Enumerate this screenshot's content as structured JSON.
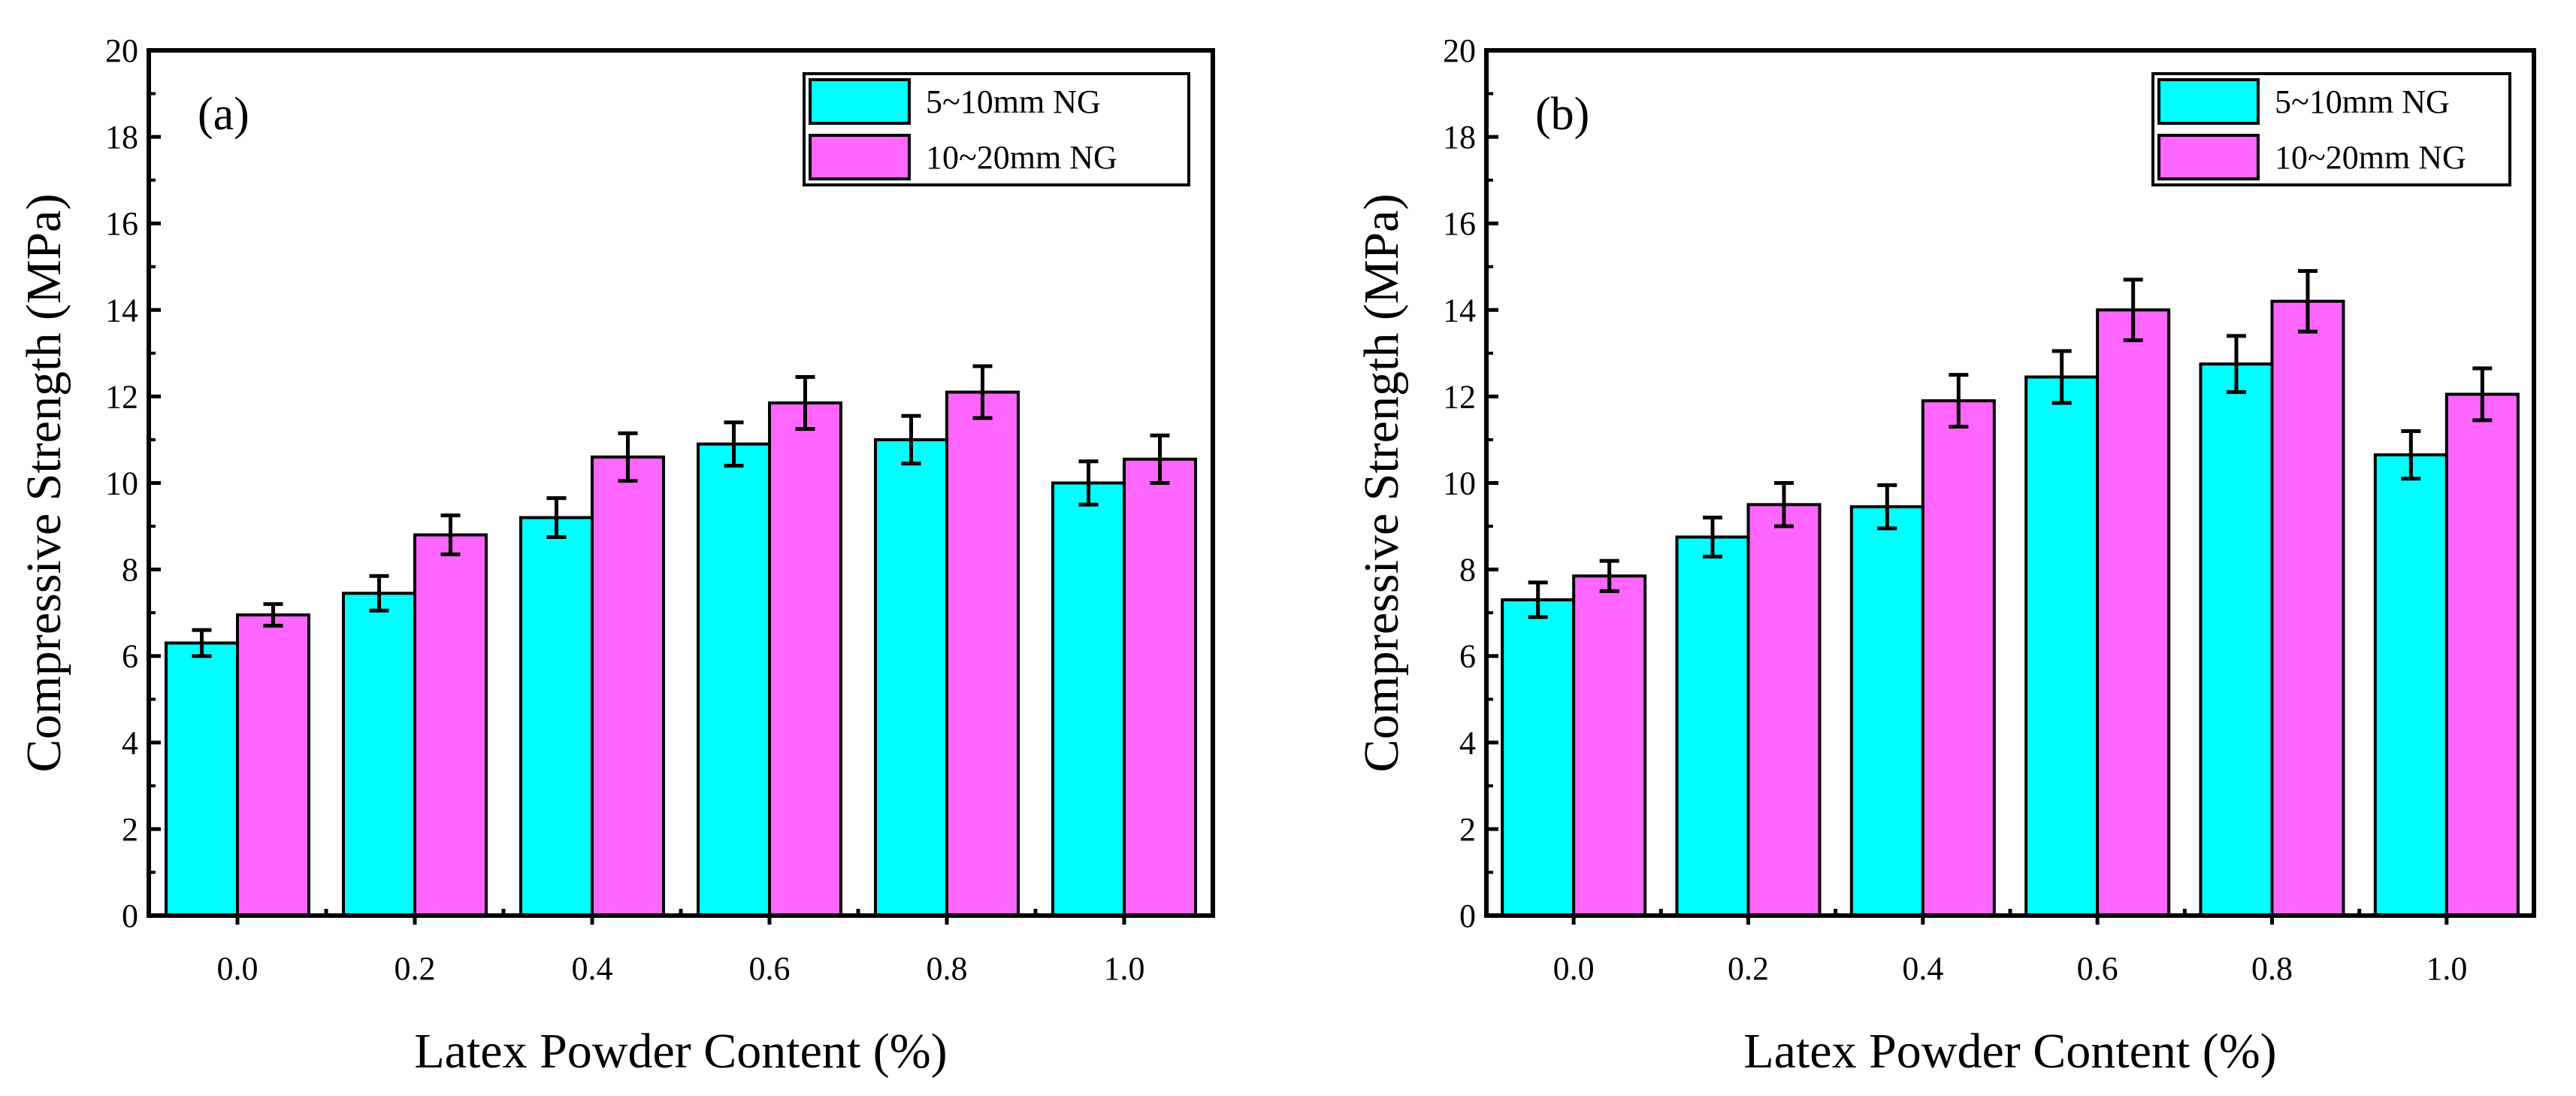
{
  "colors": {
    "series_0": "#00ffff",
    "series_1": "#ff66ff",
    "frame": "#000000",
    "background": "#ffffff"
  },
  "chart_data": [
    {
      "type": "bar",
      "panel_label": "(a)",
      "title": "",
      "xlabel": "Latex Powder Content (%)",
      "ylabel": "Compressive Strength (MPa)",
      "categories": [
        "0.0",
        "0.2",
        "0.4",
        "0.6",
        "0.8",
        "1.0"
      ],
      "ylim": [
        0,
        20
      ],
      "yticks": [
        "0",
        "2",
        "4",
        "6",
        "8",
        "10",
        "12",
        "14",
        "16",
        "18",
        "20"
      ],
      "grid": false,
      "legend_position": "top-right",
      "series": [
        {
          "name": "5~10mm NG",
          "values": [
            6.3,
            7.45,
            9.2,
            10.9,
            11.0,
            10.0
          ],
          "errors": [
            0.3,
            0.4,
            0.45,
            0.5,
            0.55,
            0.5
          ]
        },
        {
          "name": "10~20mm NG",
          "values": [
            6.95,
            8.8,
            10.6,
            11.85,
            12.1,
            10.55
          ],
          "errors": [
            0.25,
            0.45,
            0.55,
            0.6,
            0.6,
            0.55
          ]
        }
      ]
    },
    {
      "type": "bar",
      "panel_label": "(b)",
      "title": "",
      "xlabel": "Latex Powder Content (%)",
      "ylabel": "Compressive Strength (MPa)",
      "categories": [
        "0.0",
        "0.2",
        "0.4",
        "0.6",
        "0.8",
        "1.0"
      ],
      "ylim": [
        0,
        20
      ],
      "yticks": [
        "0",
        "2",
        "4",
        "6",
        "8",
        "10",
        "12",
        "14",
        "16",
        "18",
        "20"
      ],
      "grid": false,
      "legend_position": "top-right",
      "series": [
        {
          "name": "5~10mm NG",
          "values": [
            7.3,
            8.75,
            9.45,
            12.45,
            12.75,
            10.65
          ],
          "errors": [
            0.4,
            0.45,
            0.5,
            0.6,
            0.65,
            0.55
          ]
        },
        {
          "name": "10~20mm NG",
          "values": [
            7.85,
            9.5,
            11.9,
            14.0,
            14.2,
            12.05
          ],
          "errors": [
            0.35,
            0.5,
            0.6,
            0.7,
            0.7,
            0.6
          ]
        }
      ]
    }
  ]
}
